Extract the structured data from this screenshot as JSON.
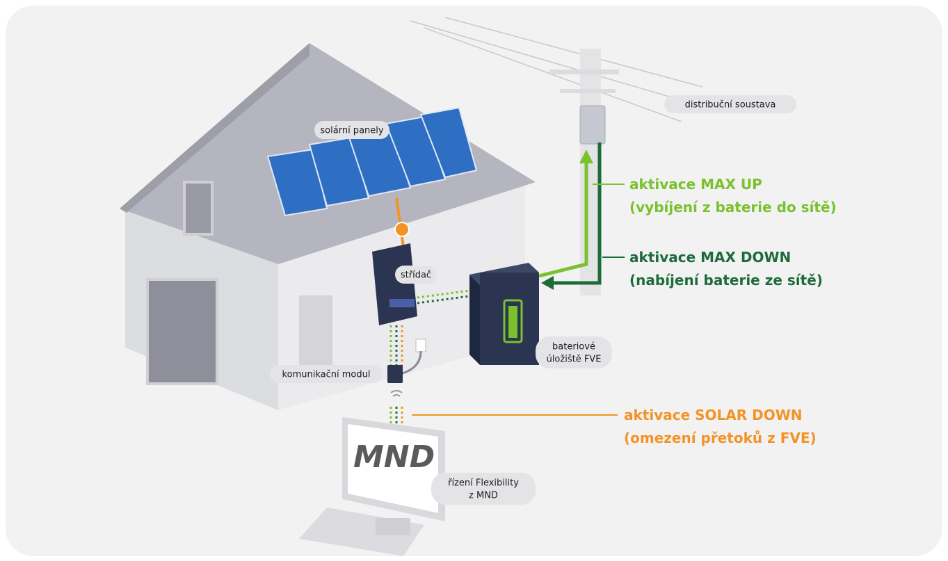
{
  "labels": {
    "solar_panels": "solární panely",
    "inverter": "střídač",
    "communication_module": "komunikační modul",
    "battery": [
      "bateriové",
      "úložiště FVE"
    ],
    "grid": "distribuční soustava",
    "control": [
      "řízení Flexibility",
      "z MND"
    ]
  },
  "activations": [
    {
      "title": "aktivace MAX UP",
      "detail": "(vybíjení z baterie do sítě)"
    },
    {
      "title": "aktivace MAX DOWN",
      "detail": "(nabíjení baterie ze sítě)"
    },
    {
      "title": "aktivace SOLAR DOWN",
      "detail": "(omezení přetoků z FVE)"
    }
  ],
  "logo": "MND"
}
